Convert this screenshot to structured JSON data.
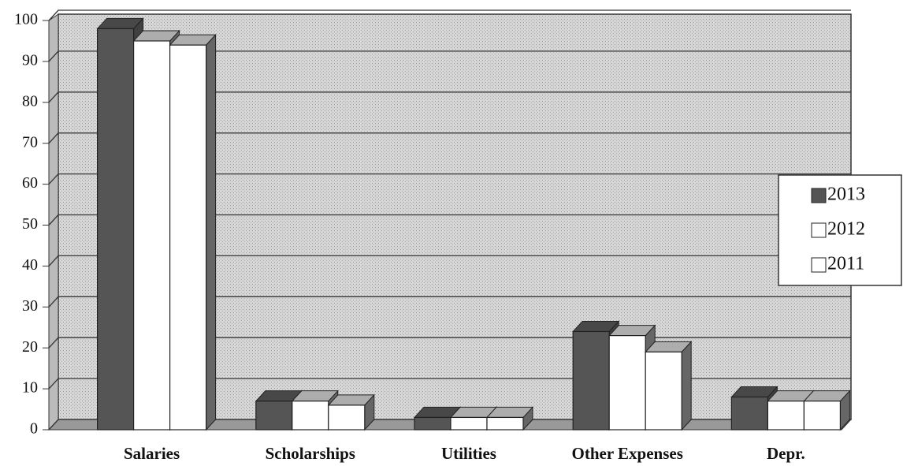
{
  "chart_data": {
    "type": "bar3d",
    "categories": [
      "Salaries",
      "Scholarships",
      "Utilities",
      "Other Expenses",
      "Depr."
    ],
    "series": [
      {
        "name": "2013",
        "color": "#555555",
        "values": [
          98,
          7,
          3,
          24,
          8
        ]
      },
      {
        "name": "2012",
        "color": "#ffffff",
        "values": [
          95,
          7,
          3,
          23,
          7
        ]
      },
      {
        "name": "2011",
        "color": "#ffffff",
        "values": [
          94,
          6,
          3,
          19,
          7
        ]
      }
    ],
    "ylim": [
      0,
      100
    ],
    "yticks": [
      0,
      10,
      20,
      30,
      40,
      50,
      60,
      70,
      80,
      90,
      100
    ],
    "grid": true,
    "legend": "right"
  }
}
